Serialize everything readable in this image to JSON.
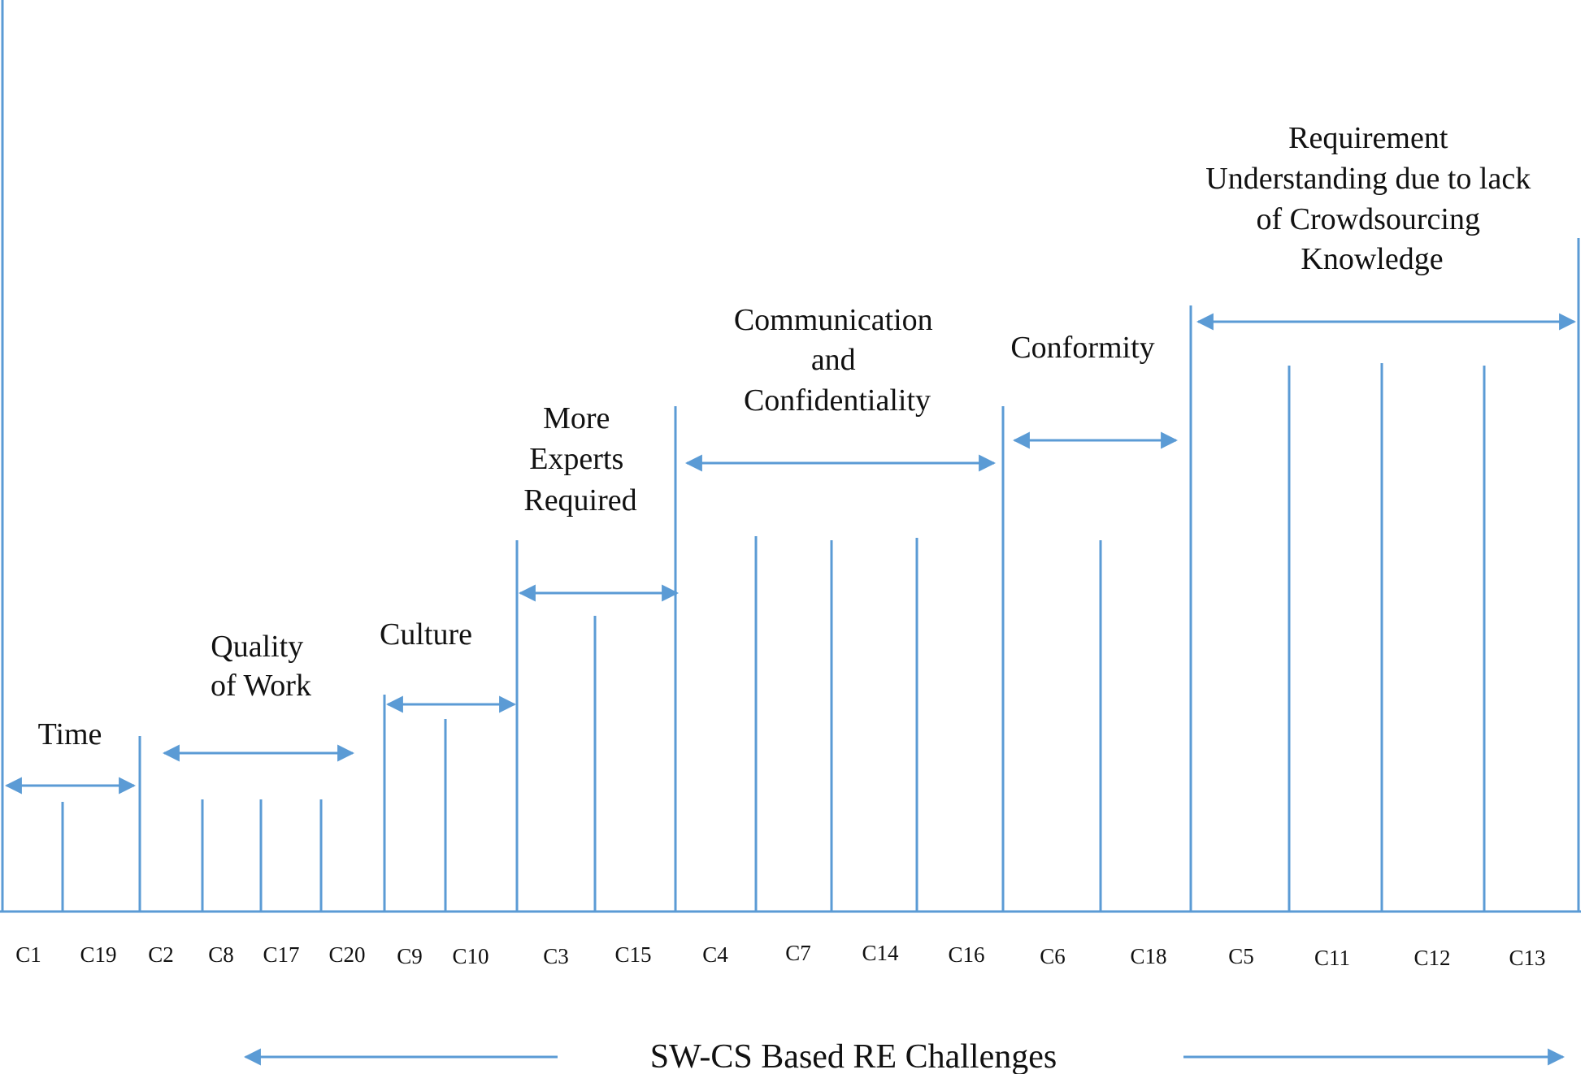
{
  "colors": {
    "line": "#5b9bd5",
    "text": "#111111"
  },
  "codes": [
    "C1",
    "C19",
    "C2",
    "C8",
    "C17",
    "C20",
    "C9",
    "C10",
    "C3",
    "C15",
    "C4",
    "C7",
    "C14",
    "C16",
    "C6",
    "C18",
    "C5",
    "C11",
    "C12",
    "C13"
  ],
  "groups": [
    {
      "id": "time",
      "lines": [
        "Time"
      ],
      "codes": [
        "C1",
        "C19"
      ]
    },
    {
      "id": "quality-of-work",
      "lines": [
        "Quality",
        "of Work"
      ],
      "codes": [
        "C2",
        "C8",
        "C17",
        "C20"
      ]
    },
    {
      "id": "culture",
      "lines": [
        "Culture"
      ],
      "codes": [
        "C9",
        "C10"
      ]
    },
    {
      "id": "more-experts-required",
      "lines": [
        "More",
        "Experts",
        "Required"
      ],
      "codes": [
        "C3",
        "C15"
      ]
    },
    {
      "id": "communication-and-confidentiality",
      "lines": [
        "Communication",
        "and",
        "Confidentiality"
      ],
      "codes": [
        "C4",
        "C7",
        "C14",
        "C16"
      ]
    },
    {
      "id": "conformity",
      "lines": [
        "Conformity"
      ],
      "codes": [
        "C6",
        "C18"
      ]
    },
    {
      "id": "requirement-understanding",
      "lines": [
        "Requirement",
        "Understanding due to lack",
        "of Crowdsourcing",
        "Knowledge"
      ],
      "codes": [
        "C5",
        "C11",
        "C12",
        "C13"
      ]
    }
  ],
  "caption": "SW-CS Based RE Challenges"
}
